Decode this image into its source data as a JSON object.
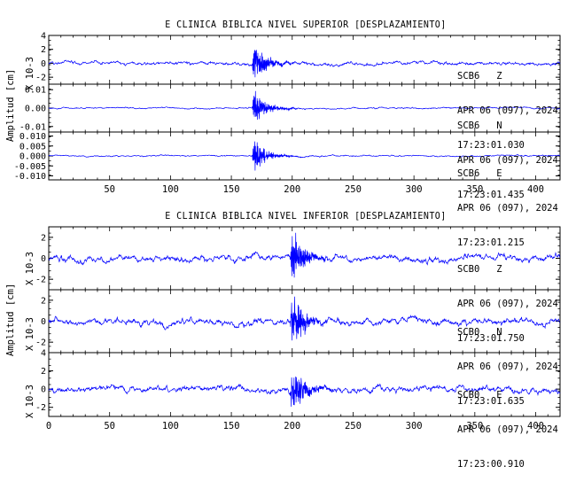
{
  "chart_data": [
    {
      "type": "line",
      "title": "E CLINICA BIBLICA NIVEL SUPERIOR [DESPLAZAMIENTO]",
      "ylabel": "Amplitud [cm]",
      "xlim": [
        0,
        420
      ],
      "xticks": [
        "50",
        "100",
        "150",
        "200",
        "250",
        "300",
        "350",
        "400"
      ],
      "traces": [
        {
          "station": "SCB6",
          "component": "Z",
          "date": "APR 06 (097), 2024",
          "time": "17:23:01.030",
          "scale_label": "X 10-3",
          "yticks": [
            "4",
            "2",
            "0",
            "-2"
          ],
          "ylim": [
            -3,
            4
          ],
          "event_start_x": 167,
          "event_peak": 2.9,
          "noise_level": 0.45,
          "color": "#0000ff"
        },
        {
          "station": "SCB6",
          "component": "N",
          "date": "APR 06 (097), 2024",
          "time": "17:23:01.435",
          "scale_label": "",
          "yticks": [
            "0.01",
            "0.00",
            "-0.01"
          ],
          "ylim": [
            -0.013,
            0.013
          ],
          "event_start_x": 167,
          "event_peak": 0.011,
          "noise_level": 0.0007,
          "color": "#0000ff"
        },
        {
          "station": "SCB6",
          "component": "E",
          "date": "APR 06 (097), 2024",
          "time": "17:23:01.215",
          "scale_label": "",
          "yticks": [
            "0.010",
            "0.005",
            "0.000",
            "-0.005",
            "-0.010"
          ],
          "ylim": [
            -0.012,
            0.012
          ],
          "event_start_x": 167,
          "event_peak": 0.009,
          "noise_level": 0.0006,
          "color": "#0000ff"
        }
      ]
    },
    {
      "type": "line",
      "title": "E CLINICA BIBLICA NIVEL INFERIOR [DESPLAZAMIENTO]",
      "ylabel": "Amplitud [cm]",
      "xlim": [
        0,
        420
      ],
      "xticks": [
        "0",
        "50",
        "100",
        "150",
        "200",
        "250",
        "300",
        "350",
        "400"
      ],
      "traces": [
        {
          "station": "SCB0",
          "component": "Z",
          "date": "APR 06 (097), 2024",
          "time": "17:23:01.750",
          "scale_label": "X 10-3",
          "yticks": [
            "2",
            "0",
            "-2"
          ],
          "ylim": [
            -3,
            3
          ],
          "event_start_x": 198,
          "event_peak": 2.8,
          "noise_level": 0.55,
          "color": "#0000ff"
        },
        {
          "station": "SCB0",
          "component": "N",
          "date": "APR 06 (097), 2024",
          "time": "17:23:01.635",
          "scale_label": "X 10-3",
          "yticks": [
            "2",
            "0",
            "-2"
          ],
          "ylim": [
            -3,
            3
          ],
          "event_start_x": 198,
          "event_peak": 2.9,
          "noise_level": 0.55,
          "color": "#0000ff"
        },
        {
          "station": "SCB0",
          "component": "E",
          "date": "APR 06 (097), 2024",
          "time": "17:23:00.910",
          "scale_label": "X 10-3",
          "yticks": [
            "4",
            "2",
            "0",
            "-2"
          ],
          "ylim": [
            -3,
            4
          ],
          "event_start_x": 198,
          "event_peak": 3.0,
          "noise_level": 0.6,
          "color": "#0000ff"
        }
      ]
    }
  ]
}
